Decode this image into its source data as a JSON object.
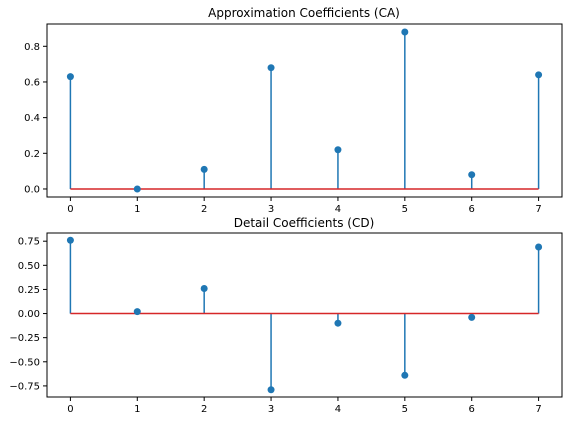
{
  "chart_data": [
    {
      "type": "stem",
      "title": "Approximation Coefficients (CA)",
      "xlabel": "",
      "ylabel": "",
      "x": [
        0,
        1,
        2,
        3,
        4,
        5,
        6,
        7
      ],
      "values": [
        0.63,
        0.0,
        0.11,
        0.68,
        0.22,
        0.88,
        0.08,
        0.64
      ],
      "xlim": [
        -0.35,
        7.35
      ],
      "ylim": [
        -0.045,
        0.925
      ],
      "xticks": [
        0,
        1,
        2,
        3,
        4,
        5,
        6,
        7
      ],
      "yticks": [
        0.0,
        0.2,
        0.4,
        0.6,
        0.8
      ],
      "ytick_labels": [
        "0.0",
        "0.2",
        "0.4",
        "0.6",
        "0.8"
      ],
      "baseline": 0.0,
      "grid": false,
      "colors": {
        "stem": "#1f77b4",
        "marker": "#1f77b4",
        "baseline": "#d62728"
      }
    },
    {
      "type": "stem",
      "title": "Detail Coefficients (CD)",
      "xlabel": "",
      "ylabel": "",
      "x": [
        0,
        1,
        2,
        3,
        4,
        5,
        6,
        7
      ],
      "values": [
        0.76,
        0.02,
        0.26,
        -0.79,
        -0.1,
        -0.64,
        -0.04,
        0.69
      ],
      "xlim": [
        -0.35,
        7.35
      ],
      "ylim": [
        -0.865,
        0.835
      ],
      "xticks": [
        0,
        1,
        2,
        3,
        4,
        5,
        6,
        7
      ],
      "yticks": [
        0.75,
        0.5,
        0.25,
        0.0,
        -0.25,
        -0.5,
        -0.75
      ],
      "ytick_labels": [
        "0.75",
        "0.50",
        "0.25",
        "0.00",
        "−0.25",
        "−0.50",
        "−0.75"
      ],
      "baseline": 0.0,
      "grid": false,
      "colors": {
        "stem": "#1f77b4",
        "marker": "#1f77b4",
        "baseline": "#d62728"
      }
    }
  ]
}
